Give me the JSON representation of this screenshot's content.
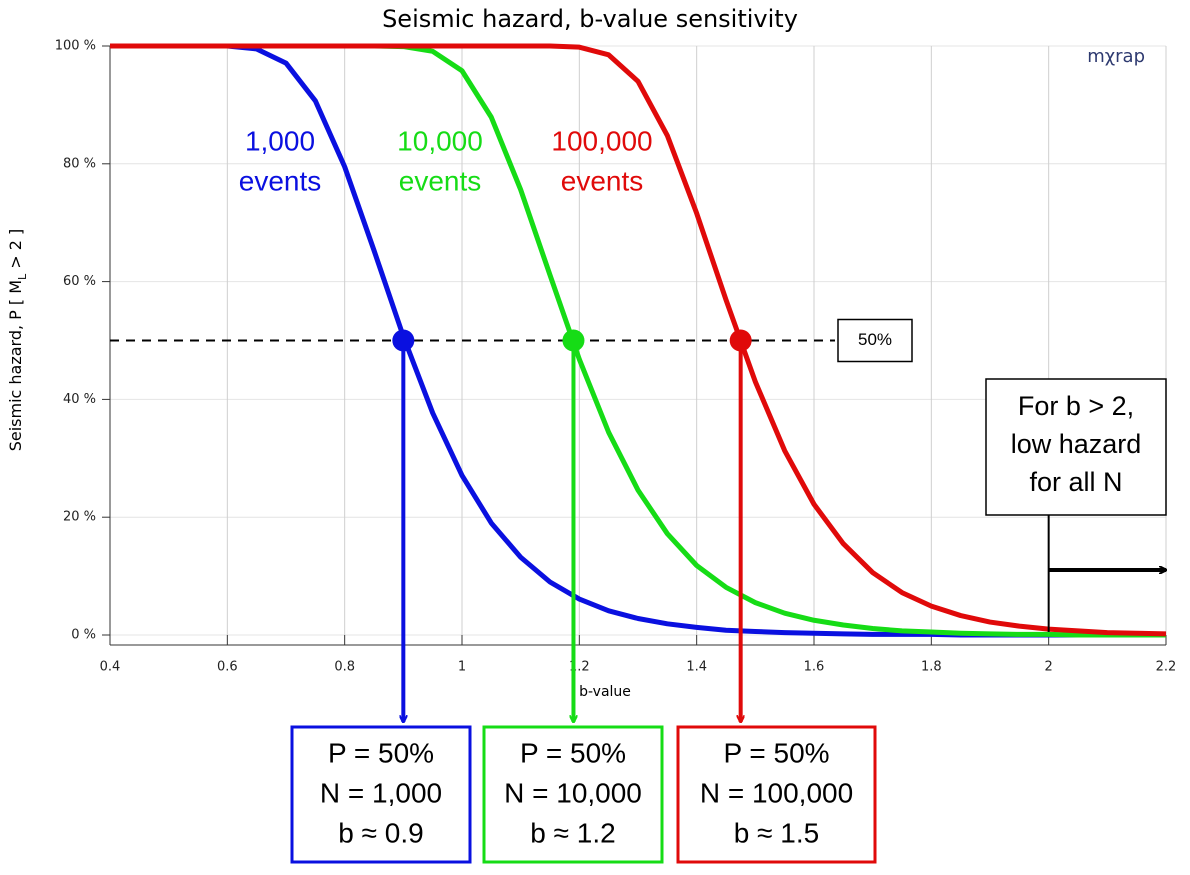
{
  "chart_data": {
    "type": "line",
    "title": "Seismic hazard, b-value sensitivity",
    "xlabel": "b-value",
    "ylabel": [
      "Seismic hazard, P [ M",
      "L",
      " > 2 ]"
    ],
    "logo": "mχrap",
    "xlim": [
      0.4,
      2.2
    ],
    "ylim": [
      0,
      100
    ],
    "xticks": [
      0.4,
      0.6,
      0.8,
      1,
      1.2,
      1.4,
      1.6,
      1.8,
      2,
      2.2
    ],
    "yticks": [
      {
        "value": 0,
        "label": "0 %"
      },
      {
        "value": 20,
        "label": "20 %"
      },
      {
        "value": 40,
        "label": "40 %"
      },
      {
        "value": 60,
        "label": "60 %"
      },
      {
        "value": 80,
        "label": "80 %"
      },
      {
        "value": 100,
        "label": "100 %"
      }
    ],
    "grid": true,
    "x": [
      0.4,
      0.45,
      0.5,
      0.55,
      0.6,
      0.65,
      0.7,
      0.75,
      0.8,
      0.85,
      0.9,
      0.95,
      1.0,
      1.05,
      1.1,
      1.15,
      1.2,
      1.25,
      1.3,
      1.35,
      1.4,
      1.45,
      1.5,
      1.55,
      1.6,
      1.65,
      1.7,
      1.75,
      1.8,
      1.85,
      1.9,
      1.95,
      2.0,
      2.05,
      2.1,
      2.15,
      2.2
    ],
    "series": [
      {
        "name": "1,000 events",
        "label": [
          "1,000",
          "events"
        ],
        "color": "#0a10e0",
        "values": [
          100,
          100,
          100,
          100,
          100,
          99.5,
          97.1,
          90.7,
          79.5,
          65.3,
          50.7,
          37.7,
          27.1,
          19.0,
          13.2,
          9.0,
          6.1,
          4.1,
          2.8,
          1.9,
          1.3,
          0.8,
          0.6,
          0.4,
          0.3,
          0.2,
          0.1,
          0.1,
          0.1,
          0,
          0,
          0,
          0,
          0,
          0,
          0,
          0
        ],
        "result": [
          "P = 50%",
          "N = 1,000",
          "b ≈ 0.9"
        ]
      },
      {
        "name": "10,000 events",
        "label": [
          "10,000",
          "events"
        ],
        "color": "#16dc16",
        "values": [
          100,
          100,
          100,
          100,
          100,
          100,
          100,
          100,
          100,
          100,
          99.9,
          99.1,
          95.8,
          87.9,
          75.6,
          61.1,
          46.8,
          34.4,
          24.6,
          17.2,
          11.8,
          8.1,
          5.5,
          3.7,
          2.5,
          1.7,
          1.1,
          0.7,
          0.5,
          0.3,
          0.2,
          0.1,
          0.1,
          0,
          0,
          0,
          0
        ],
        "result": [
          "P = 50%",
          "N = 10,000",
          "b ≈ 1.2"
        ]
      },
      {
        "name": "100,000 events",
        "label": [
          "100,000",
          "events"
        ],
        "color": "#e00a0a",
        "values": [
          100,
          100,
          100,
          100,
          100,
          100,
          100,
          100,
          100,
          100,
          100,
          100,
          100,
          100,
          100,
          100,
          99.8,
          98.5,
          94.0,
          84.8,
          71.6,
          56.9,
          43.0,
          31.3,
          22.2,
          15.5,
          10.6,
          7.2,
          4.9,
          3.3,
          2.2,
          1.5,
          1.0,
          0.7,
          0.4,
          0.3,
          0.2
        ],
        "result": [
          "P = 50%",
          "N = 100,000",
          "b ≈ 1.5"
        ]
      }
    ],
    "markers": [
      {
        "x": 0.9,
        "y": 50
      },
      {
        "x": 1.19,
        "y": 50
      },
      {
        "x": 1.475,
        "y": 50
      }
    ],
    "threshold": {
      "y": 50,
      "label": "50%"
    },
    "callout": {
      "lines": [
        "For b > 2,",
        "low hazard",
        "for all N"
      ],
      "x": 2
    }
  }
}
